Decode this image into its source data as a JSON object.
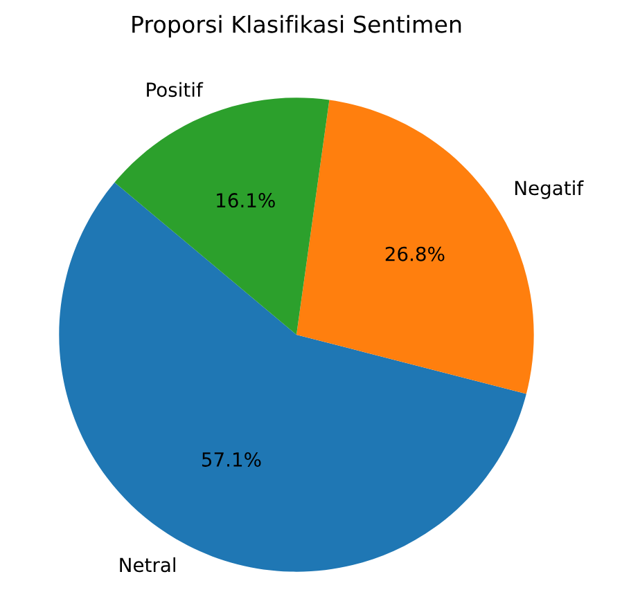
{
  "chart_data": {
    "type": "pie",
    "title": "Proporsi Klasifikasi Sentimen",
    "categories": [
      "Netral",
      "Negatif",
      "Positif"
    ],
    "values": [
      57.1,
      26.8,
      16.1
    ],
    "value_labels": [
      "57.1%",
      "26.8%",
      "16.1%"
    ],
    "colors": [
      "#1f77b4",
      "#ff7f0e",
      "#2ca02c"
    ]
  }
}
